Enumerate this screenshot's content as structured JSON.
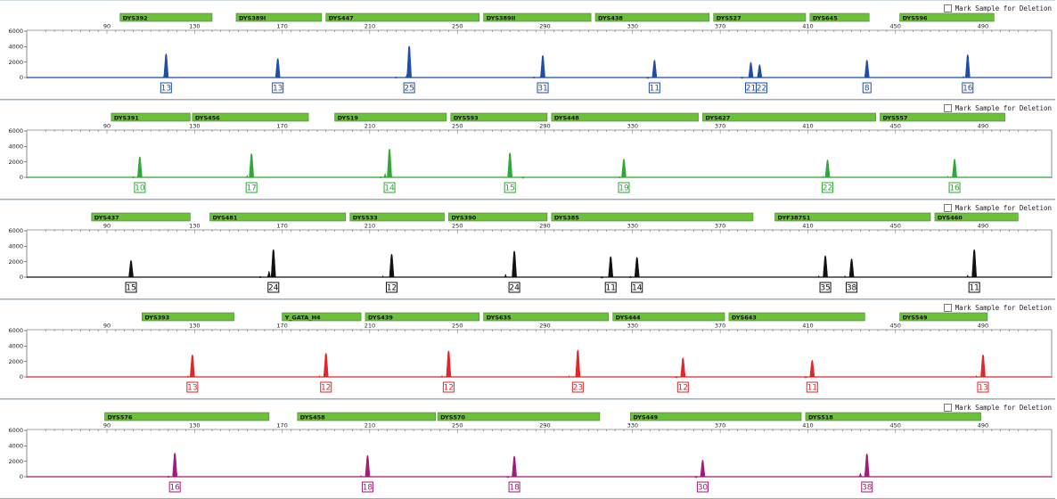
{
  "mark_label": "Mark Sample for Deletion",
  "x_ticks": [
    90,
    130,
    170,
    210,
    250,
    290,
    330,
    370,
    410,
    450,
    490
  ],
  "y_ticks": [
    0,
    2000,
    4000,
    6000
  ],
  "marker_color": "#6cc13a",
  "chart_data": [
    {
      "type": "line",
      "dye_color": "#1f4ea8",
      "xlim": [
        60,
        515
      ],
      "ylim": [
        0,
        6000
      ],
      "markers": [
        {
          "name": "DYS392",
          "start": 96,
          "end": 138
        },
        {
          "name": "DYS389I",
          "start": 149,
          "end": 188
        },
        {
          "name": "DYS447",
          "start": 190,
          "end": 260
        },
        {
          "name": "DYS389II",
          "start": 262,
          "end": 311
        },
        {
          "name": "DYS438",
          "start": 313,
          "end": 365
        },
        {
          "name": "DYS527",
          "start": 367,
          "end": 409
        },
        {
          "name": "DYS645",
          "start": 411,
          "end": 438
        },
        {
          "name": "DYS596",
          "start": 452,
          "end": 495
        }
      ],
      "peaks": [
        {
          "x": 117,
          "h": 3200,
          "label": "13"
        },
        {
          "x": 116,
          "h": 400,
          "label": ""
        },
        {
          "x": 168,
          "h": 2600,
          "label": "13"
        },
        {
          "x": 228,
          "h": 4200,
          "label": "25"
        },
        {
          "x": 227,
          "h": 600,
          "label": ""
        },
        {
          "x": 222,
          "h": 250,
          "label": ""
        },
        {
          "x": 289,
          "h": 3000,
          "label": "31"
        },
        {
          "x": 288,
          "h": 400,
          "label": ""
        },
        {
          "x": 285,
          "h": 250,
          "label": ""
        },
        {
          "x": 340,
          "h": 2400,
          "label": "11"
        },
        {
          "x": 337,
          "h": 200,
          "label": ""
        },
        {
          "x": 384,
          "h": 2100,
          "label": "21"
        },
        {
          "x": 388,
          "h": 1800,
          "label": "22"
        },
        {
          "x": 380,
          "h": 200,
          "label": ""
        },
        {
          "x": 437,
          "h": 2400,
          "label": "8"
        },
        {
          "x": 483,
          "h": 3100,
          "label": "16"
        },
        {
          "x": 481,
          "h": 300,
          "label": ""
        }
      ]
    },
    {
      "type": "line",
      "dye_color": "#2ea836",
      "xlim": [
        60,
        515
      ],
      "ylim": [
        0,
        6000
      ],
      "markers": [
        {
          "name": "DYS391",
          "start": 92,
          "end": 128
        },
        {
          "name": "DYS456",
          "start": 129,
          "end": 182
        },
        {
          "name": "DYS19",
          "start": 194,
          "end": 245
        },
        {
          "name": "DYS593",
          "start": 247,
          "end": 291
        },
        {
          "name": "DYS448",
          "start": 293,
          "end": 360
        },
        {
          "name": "DYS627",
          "start": 362,
          "end": 441
        },
        {
          "name": "DYS557",
          "start": 443,
          "end": 500
        }
      ],
      "peaks": [
        {
          "x": 105,
          "h": 2800,
          "label": "10"
        },
        {
          "x": 102,
          "h": 250,
          "label": ""
        },
        {
          "x": 156,
          "h": 3200,
          "label": "17"
        },
        {
          "x": 154,
          "h": 400,
          "label": ""
        },
        {
          "x": 219,
          "h": 3800,
          "label": "14"
        },
        {
          "x": 217,
          "h": 600,
          "label": ""
        },
        {
          "x": 215,
          "h": 250,
          "label": ""
        },
        {
          "x": 274,
          "h": 3300,
          "label": "15"
        },
        {
          "x": 280,
          "h": 200,
          "label": ""
        },
        {
          "x": 326,
          "h": 2500,
          "label": "19"
        },
        {
          "x": 324,
          "h": 250,
          "label": ""
        },
        {
          "x": 419,
          "h": 2400,
          "label": "22"
        },
        {
          "x": 417,
          "h": 300,
          "label": ""
        },
        {
          "x": 477,
          "h": 2500,
          "label": "16"
        },
        {
          "x": 474,
          "h": 300,
          "label": ""
        }
      ]
    },
    {
      "type": "line",
      "dye_color": "#111111",
      "xlim": [
        60,
        515
      ],
      "ylim": [
        0,
        6000
      ],
      "markers": [
        {
          "name": "DYS437",
          "start": 83,
          "end": 128
        },
        {
          "name": "DYS481",
          "start": 137,
          "end": 199
        },
        {
          "name": "DYS533",
          "start": 201,
          "end": 244
        },
        {
          "name": "DYS390",
          "start": 246,
          "end": 291
        },
        {
          "name": "DYS385",
          "start": 293,
          "end": 385
        },
        {
          "name": "DYF387S1",
          "start": 395,
          "end": 466
        },
        {
          "name": "DYS460",
          "start": 468,
          "end": 506
        }
      ],
      "peaks": [
        {
          "x": 101,
          "h": 2300,
          "label": "15"
        },
        {
          "x": 166,
          "h": 3700,
          "label": "24"
        },
        {
          "x": 164,
          "h": 900,
          "label": ""
        },
        {
          "x": 160,
          "h": 250,
          "label": ""
        },
        {
          "x": 220,
          "h": 3100,
          "label": "12"
        },
        {
          "x": 216,
          "h": 300,
          "label": ""
        },
        {
          "x": 276,
          "h": 3500,
          "label": "24"
        },
        {
          "x": 272,
          "h": 500,
          "label": ""
        },
        {
          "x": 320,
          "h": 2800,
          "label": "11"
        },
        {
          "x": 332,
          "h": 2700,
          "label": "14"
        },
        {
          "x": 316,
          "h": 200,
          "label": ""
        },
        {
          "x": 329,
          "h": 250,
          "label": ""
        },
        {
          "x": 418,
          "h": 2900,
          "label": "35"
        },
        {
          "x": 430,
          "h": 2500,
          "label": "38"
        },
        {
          "x": 415,
          "h": 300,
          "label": ""
        },
        {
          "x": 427,
          "h": 300,
          "label": ""
        },
        {
          "x": 486,
          "h": 3700,
          "label": "11"
        },
        {
          "x": 483,
          "h": 400,
          "label": ""
        }
      ]
    },
    {
      "type": "line",
      "dye_color": "#e0262a",
      "xlim": [
        60,
        515
      ],
      "ylim": [
        0,
        6000
      ],
      "markers": [
        {
          "name": "DYS393",
          "start": 106,
          "end": 148
        },
        {
          "name": "Y_GATA_H4",
          "start": 170,
          "end": 206
        },
        {
          "name": "DYS439",
          "start": 208,
          "end": 260
        },
        {
          "name": "DYS635",
          "start": 262,
          "end": 319
        },
        {
          "name": "DYS444",
          "start": 321,
          "end": 372
        },
        {
          "name": "DYS643",
          "start": 374,
          "end": 436
        },
        {
          "name": "DYS549",
          "start": 452,
          "end": 492
        }
      ],
      "peaks": [
        {
          "x": 129,
          "h": 3000,
          "label": "13"
        },
        {
          "x": 127,
          "h": 300,
          "label": ""
        },
        {
          "x": 190,
          "h": 3200,
          "label": "12"
        },
        {
          "x": 187,
          "h": 300,
          "label": ""
        },
        {
          "x": 246,
          "h": 3500,
          "label": "12"
        },
        {
          "x": 243,
          "h": 300,
          "label": ""
        },
        {
          "x": 305,
          "h": 3600,
          "label": "23"
        },
        {
          "x": 301,
          "h": 300,
          "label": ""
        },
        {
          "x": 353,
          "h": 2600,
          "label": "12"
        },
        {
          "x": 350,
          "h": 200,
          "label": ""
        },
        {
          "x": 412,
          "h": 2300,
          "label": "11"
        },
        {
          "x": 409,
          "h": 200,
          "label": ""
        },
        {
          "x": 490,
          "h": 3000,
          "label": "13"
        },
        {
          "x": 487,
          "h": 300,
          "label": ""
        }
      ]
    },
    {
      "type": "line",
      "dye_color": "#a01b7a",
      "xlim": [
        60,
        515
      ],
      "ylim": [
        0,
        6000
      ],
      "markers": [
        {
          "name": "DYS576",
          "start": 89,
          "end": 164
        },
        {
          "name": "DYS458",
          "start": 177,
          "end": 240
        },
        {
          "name": "DYS570",
          "start": 241,
          "end": 315
        },
        {
          "name": "DYS449",
          "start": 329,
          "end": 407
        },
        {
          "name": "DYS518",
          "start": 409,
          "end": 489
        }
      ],
      "peaks": [
        {
          "x": 121,
          "h": 3200,
          "label": "16"
        },
        {
          "x": 118,
          "h": 250,
          "label": ""
        },
        {
          "x": 209,
          "h": 2900,
          "label": "18"
        },
        {
          "x": 206,
          "h": 300,
          "label": ""
        },
        {
          "x": 276,
          "h": 2800,
          "label": "18"
        },
        {
          "x": 273,
          "h": 200,
          "label": ""
        },
        {
          "x": 362,
          "h": 2300,
          "label": "30"
        },
        {
          "x": 359,
          "h": 200,
          "label": ""
        },
        {
          "x": 437,
          "h": 3100,
          "label": "38"
        },
        {
          "x": 434,
          "h": 600,
          "label": ""
        }
      ]
    }
  ]
}
